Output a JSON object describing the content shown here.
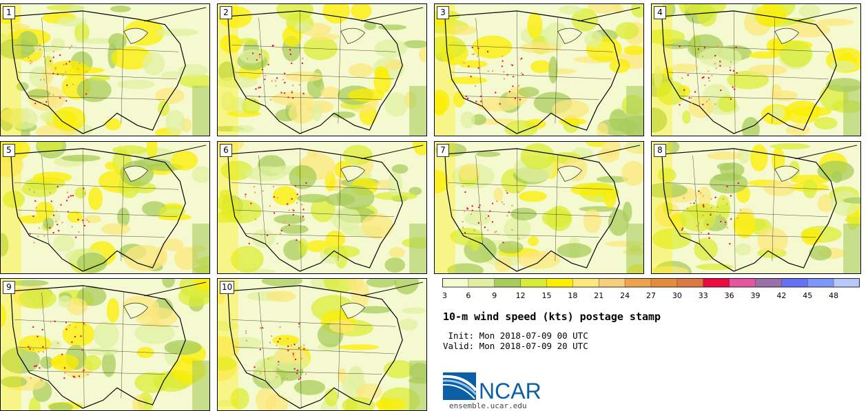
{
  "panels": [
    {
      "label": "1"
    },
    {
      "label": "2"
    },
    {
      "label": "3"
    },
    {
      "label": "4"
    },
    {
      "label": "5"
    },
    {
      "label": "6"
    },
    {
      "label": "7"
    },
    {
      "label": "8"
    },
    {
      "label": "9"
    },
    {
      "label": "10"
    }
  ],
  "legend": {
    "colors": [
      "#f5f9cf",
      "#e0f0a0",
      "#a8cc5c",
      "#d9ec35",
      "#fbee00",
      "#fbe77c",
      "#f4cf7c",
      "#eda34c",
      "#e58c3c",
      "#db7a40",
      "#ec0a40",
      "#e356a0",
      "#9b6fa8",
      "#6672f4",
      "#7e96f7",
      "#b8c8f9"
    ],
    "ticks": [
      "3",
      "6",
      "9",
      "12",
      "15",
      "18",
      "21",
      "24",
      "27",
      "30",
      "33",
      "36",
      "39",
      "42",
      "45",
      "48"
    ]
  },
  "title": "10-m wind speed (kts) postage stamp",
  "init": " Init: Mon 2018-07-09 00 UTC",
  "valid": "Valid: Mon 2018-07-09 20 UTC",
  "logo": {
    "text": "NCAR",
    "brand_color": "#0068a8",
    "arc_color": "#1a6db3"
  },
  "footer": "ensemble.ucar.edu"
}
